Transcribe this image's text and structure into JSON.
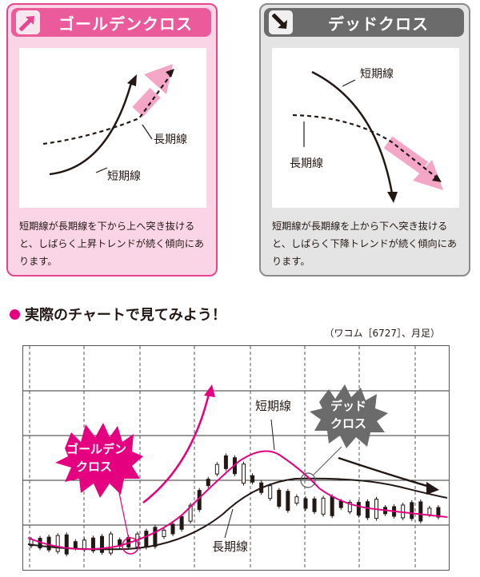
{
  "golden_cross": {
    "title": "ゴールデンクロス",
    "long_label": "長期線",
    "short_label": "短期線",
    "description": "短期線が長期線を下から上へ突き抜けると、しばらく上昇トレンドが続く傾向にあります。",
    "icon": "arrow-up-right-icon",
    "accent": "#e6458f"
  },
  "dead_cross": {
    "title": "デッドクロス",
    "short_label": "短期線",
    "long_label": "長期線",
    "description": "短期線が長期線を上から下へ突き抜けると、しばらく下降トレンドが続く傾向にあります。",
    "icon": "arrow-down-right-icon",
    "accent": "#6b6b6b"
  },
  "section": {
    "title": "実際のチャートで見てみよう！",
    "source": "（ワコム［6727］、月足）"
  },
  "chart": {
    "short_label": "短期線",
    "long_label": "長期線",
    "golden_badge": [
      "ゴールデン",
      "クロス"
    ],
    "dead_badge": [
      "デッド",
      "クロス"
    ],
    "colors": {
      "short_line": "#e4007f",
      "long_line": "#231815",
      "badge_pink": "#e4007f",
      "badge_gray": "#6b6b6b"
    }
  }
}
